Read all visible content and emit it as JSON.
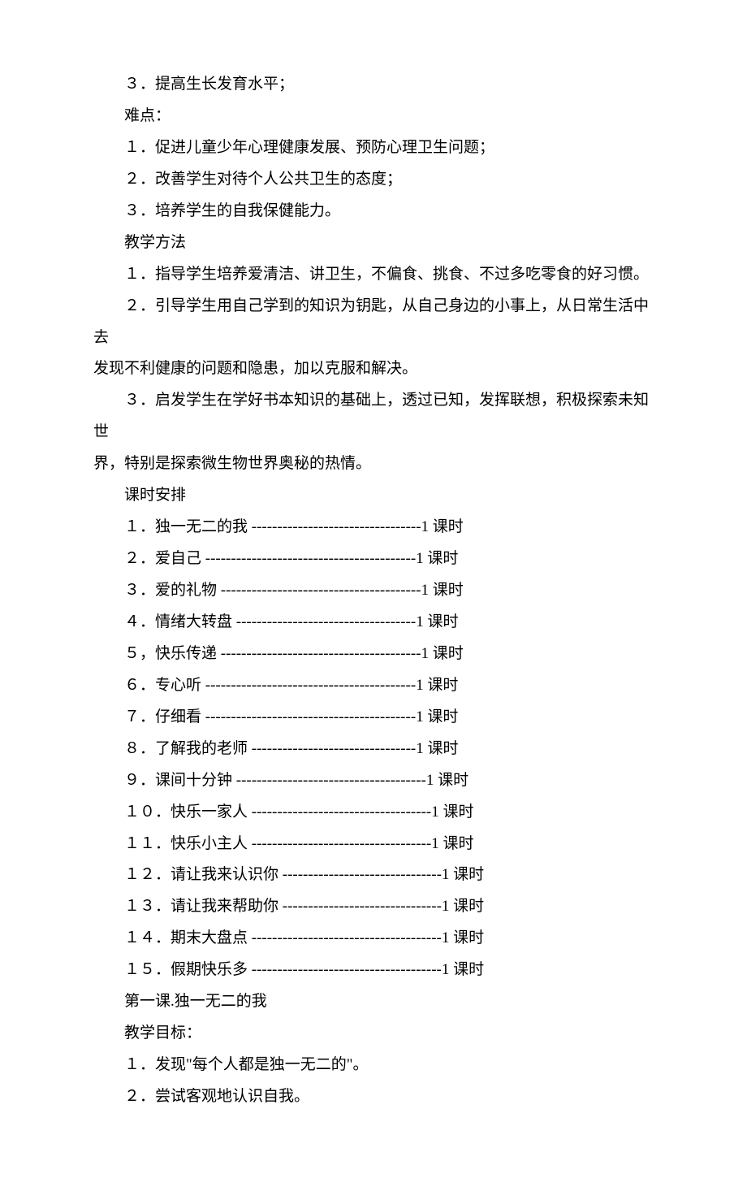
{
  "lines": [
    {
      "type": "para",
      "text": "３．提高生长发育水平；"
    },
    {
      "type": "para",
      "text": "难点："
    },
    {
      "type": "para",
      "text": "１．促进儿童少年心理健康发展、预防心理卫生问题；"
    },
    {
      "type": "para",
      "text": "２．改善学生对待个人公共卫生的态度；"
    },
    {
      "type": "para",
      "text": "３．培养学生的自我保健能力。"
    },
    {
      "type": "para",
      "text": "教学方法"
    },
    {
      "type": "para",
      "text": "１．指导学生培养爱清洁、讲卫生，不偏食、挑食、不过多吃零食的好习惯。"
    },
    {
      "type": "para-wrap",
      "first": "２．引导学生用自己学到的知识为钥匙，从自己身边的小事上，从日常生活中去",
      "rest": "发现不利健康的问题和隐患，加以克服和解决。"
    },
    {
      "type": "para-wrap",
      "first": "３．启发学生在学好书本知识的基础上，透过已知，发挥联想，积极探索未知世",
      "rest": "界，特别是探索微生物世界奥秘的热情。"
    },
    {
      "type": "para",
      "text": "课时安排"
    }
  ],
  "schedule": [
    {
      "num": "１",
      "sep": "．",
      "title": "独一无二的我",
      "dash": "---------------------------------",
      "suffix": "1 课时"
    },
    {
      "num": "２",
      "sep": "．",
      "title": "爱自己",
      "dash": "-----------------------------------------",
      "suffix": "1 课时"
    },
    {
      "num": "３",
      "sep": "．",
      "title": "爱的礼物",
      "dash": "---------------------------------------",
      "suffix": "1 课时"
    },
    {
      "num": "４",
      "sep": "．",
      "title": "情绪大转盘",
      "dash": "-----------------------------------",
      "suffix": "1 课时"
    },
    {
      "num": "５",
      "sep": "，",
      "title": "快乐传递",
      "dash": "---------------------------------------",
      "suffix": "1 课时"
    },
    {
      "num": "６",
      "sep": "．",
      "title": "专心听",
      "dash": "-----------------------------------------",
      "suffix": "1 课时"
    },
    {
      "num": "７",
      "sep": "．",
      "title": "仔细看",
      "dash": "-----------------------------------------",
      "suffix": "1 课时"
    },
    {
      "num": "８",
      "sep": "．",
      "title": "了解我的老师",
      "dash": "--------------------------------",
      "suffix": "1 课时"
    },
    {
      "num": "９",
      "sep": "．",
      "title": "课间十分钟",
      "dash": "-------------------------------------",
      "suffix": "1 课时"
    },
    {
      "num": "１０",
      "sep": "．",
      "title": "快乐一家人",
      "dash": "-----------------------------------",
      "suffix": "1 课时"
    },
    {
      "num": "１１",
      "sep": "．",
      "title": "快乐小主人",
      "dash": "-----------------------------------",
      "suffix": "1 课时"
    },
    {
      "num": "１２",
      "sep": "．",
      "title": "请让我来认识你",
      "dash": "-------------------------------",
      "suffix": "1 课时"
    },
    {
      "num": "１３",
      "sep": "．",
      "title": "请让我来帮助你",
      "dash": "-------------------------------",
      "suffix": "1 课时"
    },
    {
      "num": "１４",
      "sep": "．",
      "title": "期末大盘点",
      "dash": "-------------------------------------",
      "suffix": "1 课时"
    },
    {
      "num": "１５",
      "sep": "．",
      "title": "假期快乐多",
      "dash": "-------------------------------------",
      "suffix": "1 课时"
    }
  ],
  "footer": [
    {
      "type": "para",
      "text": "第一课.独一无二的我"
    },
    {
      "type": "para",
      "text": "教学目标："
    },
    {
      "type": "para",
      "text": "１．发现\"每个人都是独一无二的\"。"
    },
    {
      "type": "para",
      "text": "２．尝试客观地认识自我。"
    }
  ]
}
